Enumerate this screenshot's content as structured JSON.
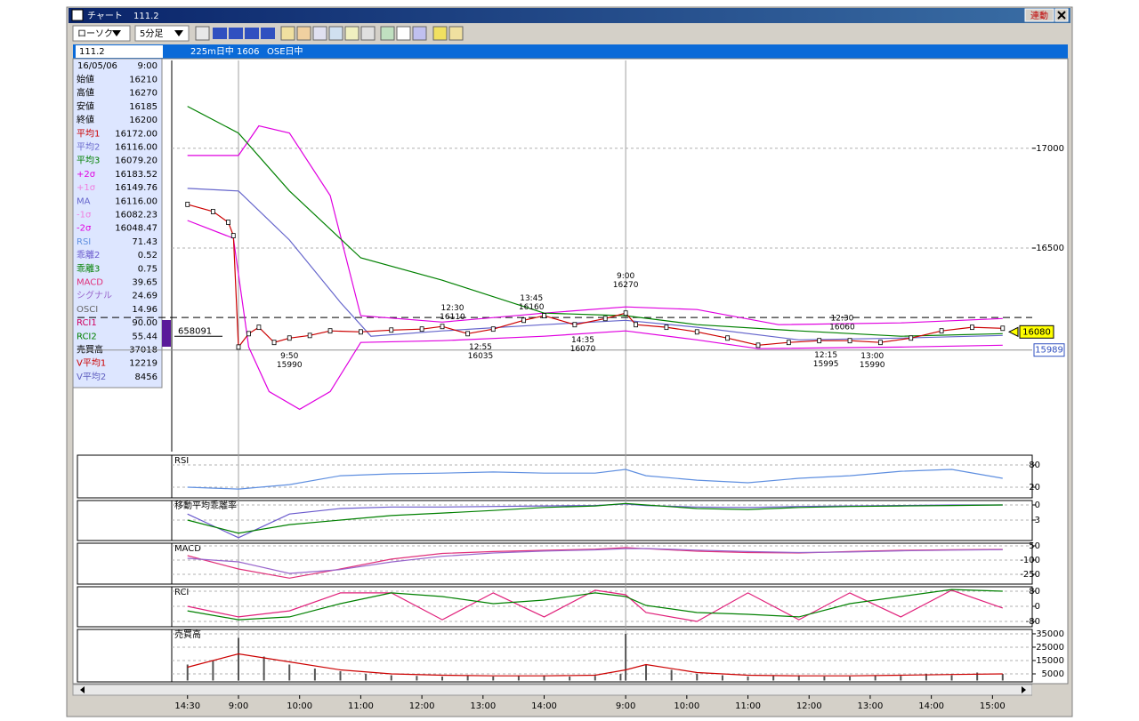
{
  "window": {
    "title": "チャート",
    "code": "111.2",
    "link_button": "連動"
  },
  "toolbar": {
    "chart_style": "ローソク",
    "interval": "5分足"
  },
  "header": {
    "input": "111.2",
    "contract": "225m日中 1606",
    "session": "OSE日中"
  },
  "info_panel": {
    "date": "16/05/06",
    "time": "9:00",
    "rows": [
      {
        "label": "始値",
        "value": "16210",
        "color": "#000000"
      },
      {
        "label": "高値",
        "value": "16270",
        "color": "#000000"
      },
      {
        "label": "安値",
        "value": "16185",
        "color": "#000000"
      },
      {
        "label": "終値",
        "value": "16200",
        "color": "#000000"
      },
      {
        "label": "平均1",
        "value": "16172.00",
        "color": "#cc0000"
      },
      {
        "label": "平均2",
        "value": "16116.00",
        "color": "#6a6acd"
      },
      {
        "label": "平均3",
        "value": "16079.20",
        "color": "#008000"
      },
      {
        "label": "+2σ",
        "value": "16183.52",
        "color": "#e000e0"
      },
      {
        "label": "+1σ",
        "value": "16149.76",
        "color": "#f080e0"
      },
      {
        "label": "MA",
        "value": "16116.00",
        "color": "#6666cc"
      },
      {
        "label": "-1σ",
        "value": "16082.23",
        "color": "#f080e0"
      },
      {
        "label": "-2σ",
        "value": "16048.47",
        "color": "#e000e0"
      },
      {
        "label": "RSI",
        "value": "71.43",
        "color": "#5f8fe0"
      },
      {
        "label": "乖離2",
        "value": "0.52",
        "color": "#6a5acd"
      },
      {
        "label": "乖離3",
        "value": "0.75",
        "color": "#008000"
      },
      {
        "label": "MACD",
        "value": "39.65",
        "color": "#e0307a"
      },
      {
        "label": "シグナル",
        "value": "24.69",
        "color": "#9966cc"
      },
      {
        "label": "OSCI",
        "value": "14.96",
        "color": "#666666"
      },
      {
        "label": "RCI1",
        "value": "90.00",
        "color": "#d00060"
      },
      {
        "label": "RCI2",
        "value": "55.44",
        "color": "#008000"
      },
      {
        "label": "売買高",
        "value": "37018",
        "color": "#000000"
      },
      {
        "label": "V平均1",
        "value": "12219",
        "color": "#cc0000"
      },
      {
        "label": "V平均2",
        "value": "8456",
        "color": "#6060c0"
      }
    ]
  },
  "chart_data": [
    {
      "type": "line",
      "xlim": [
        -3.1,
        165.8
      ],
      "ylim": [
        15480,
        17440
      ],
      "yticks": [
        16500,
        17000
      ],
      "grid": true,
      "cursor_x": [
        10,
        86
      ],
      "reference_line": 16152,
      "last_price": 16080,
      "low_price": 15989,
      "volume_label": "658091",
      "series": [
        {
          "color": "#e000e0",
          "x": [
            0,
            10,
            14,
            20,
            28,
            34,
            50,
            70,
            86,
            100,
            116,
            140,
            160
          ],
          "values": [
            16964,
            16964,
            17112,
            17076,
            16763,
            16161,
            16129,
            16174,
            16205,
            16192,
            16116,
            16125,
            16147
          ]
        },
        {
          "color": "#e000e0",
          "x": [
            0,
            9,
            12,
            16,
            22,
            28,
            34,
            50,
            70,
            86,
            100,
            112,
            140,
            160
          ],
          "values": [
            16638,
            16549,
            16004,
            15781,
            15692,
            15781,
            16027,
            16036,
            16058,
            16085,
            16040,
            15996,
            16004,
            16013
          ]
        },
        {
          "color": "#008000",
          "x": [
            0,
            10,
            20,
            34,
            50,
            70,
            86,
            100,
            120,
            140,
            160
          ],
          "values": [
            17210,
            17076,
            16786,
            16451,
            16339,
            16174,
            16161,
            16116,
            16085,
            16058,
            16071
          ]
        },
        {
          "color": "#6666cc",
          "x": [
            0,
            10,
            20,
            30,
            36,
            50,
            70,
            86,
            100,
            120,
            140,
            160
          ],
          "values": [
            16799,
            16786,
            16540,
            16228,
            16058,
            16085,
            16116,
            16138,
            16103,
            16040,
            16049,
            16062
          ]
        },
        {
          "color": "#cc0000",
          "markers": true,
          "x": [
            0,
            5,
            8,
            9,
            10,
            12,
            14,
            17,
            20,
            24,
            28,
            34,
            40,
            46,
            50,
            55,
            60,
            66,
            70,
            76,
            82,
            86,
            88,
            94,
            100,
            106,
            112,
            118,
            124,
            130,
            136,
            142,
            148,
            154,
            160
          ],
          "values": [
            16719,
            16683,
            16629,
            16562,
            16004,
            16071,
            16103,
            16027,
            16049,
            16062,
            16085,
            16080,
            16089,
            16094,
            16107,
            16071,
            16094,
            16138,
            16161,
            16116,
            16147,
            16174,
            16116,
            16103,
            16080,
            16049,
            16013,
            16027,
            16036,
            16036,
            16027,
            16049,
            16085,
            16103,
            16098
          ]
        }
      ],
      "annotations": [
        {
          "time": "12:30",
          "value": 16110,
          "x": 52,
          "position": "above"
        },
        {
          "time": "12:55",
          "value": 16035,
          "x": 57.5,
          "position": "below"
        },
        {
          "time": "13:45",
          "value": 16160,
          "x": 67.5,
          "position": "above"
        },
        {
          "time": "14:35",
          "value": 16070,
          "x": 77.6,
          "position": "below"
        },
        {
          "time": "9:00",
          "value": 16270,
          "x": 86,
          "position": "above"
        },
        {
          "time": "9:50",
          "value": 15990,
          "x": 20,
          "position": "below"
        },
        {
          "time": "12:30",
          "value": 16060,
          "x": 128.5,
          "position": "above"
        },
        {
          "time": "12:15",
          "value": 15995,
          "x": 125.3,
          "position": "below"
        },
        {
          "time": "13:00",
          "value": 15990,
          "x": 134.4,
          "position": "below"
        }
      ]
    },
    {
      "type": "line",
      "title": "RSI",
      "xlim": [
        -3.1,
        165.8
      ],
      "ylim": [
        -8.8,
        106.4
      ],
      "yticks": [
        20,
        80
      ],
      "grid": true,
      "x": [
        0,
        10,
        20,
        30,
        40,
        50,
        60,
        70,
        80,
        86,
        90,
        100,
        110,
        120,
        130,
        140,
        150,
        160
      ],
      "series": [
        {
          "color": "#5f8fe0",
          "values": [
            20,
            15,
            27,
            51,
            56,
            58,
            61,
            58,
            58,
            68,
            51,
            39,
            32,
            44,
            51,
            63,
            68,
            44
          ]
        }
      ]
    },
    {
      "type": "line",
      "title": "移動平均乖離率",
      "xlim": [
        -3.1,
        165.8
      ],
      "ylim": [
        -7.06,
        0.88
      ],
      "yticks": [
        -3,
        0
      ],
      "grid": true,
      "x": [
        0,
        10,
        20,
        30,
        40,
        50,
        60,
        70,
        80,
        86,
        90,
        100,
        110,
        120,
        130,
        140,
        150,
        160
      ],
      "series": [
        {
          "color": "#6a5acd",
          "values": [
            -1.8,
            -6.5,
            -1.8,
            -0.7,
            -0.4,
            -0.4,
            -0.3,
            -0.2,
            -0.1,
            0.2,
            -0.1,
            -0.4,
            -0.5,
            -0.3,
            -0.2,
            -0.1,
            0,
            0
          ]
        },
        {
          "color": "#008000",
          "values": [
            -3,
            -5.6,
            -3.9,
            -3,
            -2.1,
            -1.6,
            -1.1,
            -0.5,
            -0.2,
            0.3,
            0,
            -0.7,
            -0.9,
            -0.5,
            -0.3,
            -0.2,
            -0.1,
            0
          ]
        }
      ]
    },
    {
      "type": "line",
      "title": "MACD",
      "xlim": [
        -3.1,
        165.8
      ],
      "ylim": [
        -353,
        78
      ],
      "yticks": [
        -250,
        -100,
        50
      ],
      "grid": true,
      "x": [
        0,
        10,
        20,
        30,
        40,
        50,
        60,
        70,
        80,
        86,
        90,
        100,
        110,
        120,
        130,
        140,
        150,
        160
      ],
      "series": [
        {
          "color": "#e0307a",
          "values": [
            -53,
            -194,
            -290,
            -194,
            -90,
            -30,
            -10,
            3,
            15,
            31,
            20,
            -6,
            -20,
            -25,
            -10,
            3,
            10,
            12
          ]
        },
        {
          "color": "#9966cc",
          "values": [
            -81,
            -119,
            -241,
            -200,
            -120,
            -60,
            -25,
            -5,
            8,
            20,
            22,
            5,
            -10,
            -20,
            -15,
            -3,
            5,
            10
          ]
        }
      ]
    },
    {
      "type": "line",
      "title": "RCI",
      "xlim": [
        -3.1,
        165.8
      ],
      "ylim": [
        -108,
        103.5
      ],
      "yticks": [
        -80,
        0,
        80
      ],
      "grid": true,
      "x": [
        0,
        10,
        20,
        30,
        40,
        50,
        60,
        70,
        80,
        86,
        90,
        100,
        110,
        120,
        130,
        140,
        150,
        160
      ],
      "series": [
        {
          "color": "#e0207a",
          "values": [
            0,
            -56,
            -24,
            71,
            71,
            -71,
            71,
            -56,
            85,
            61,
            -33,
            -80,
            71,
            -71,
            71,
            -56,
            85,
            -9
          ]
        },
        {
          "color": "#008000",
          "values": [
            -24,
            -71,
            -56,
            14,
            71,
            52,
            14,
            33,
            71,
            52,
            5,
            -33,
            -42,
            -56,
            14,
            52,
            89,
            80
          ]
        }
      ]
    },
    {
      "type": "bar",
      "title": "売買高",
      "xlim": [
        -3.1,
        165.8
      ],
      "ylim": [
        -1000,
        38300
      ],
      "yticks": [
        5000,
        15000,
        25000,
        35000
      ],
      "grid": true,
      "xticks": [
        {
          "value": 0,
          "label": "14:30"
        },
        {
          "value": 10,
          "label": "9:00"
        },
        {
          "value": 22,
          "label": "10:00"
        },
        {
          "value": 34,
          "label": "11:00"
        },
        {
          "value": 46,
          "label": "12:00"
        },
        {
          "value": 58,
          "label": "13:00"
        },
        {
          "value": 70,
          "label": "14:00"
        },
        {
          "value": 86,
          "label": "9:00"
        },
        {
          "value": 98,
          "label": "10:00"
        },
        {
          "value": 110,
          "label": "11:00"
        },
        {
          "value": 122,
          "label": "12:00"
        },
        {
          "value": 134,
          "label": "13:00"
        },
        {
          "value": 146,
          "label": "14:00"
        },
        {
          "value": 158,
          "label": "15:00"
        }
      ],
      "series": [
        {
          "type": "bar",
          "color": "#555555",
          "x": [
            0,
            5,
            10,
            15,
            20,
            25,
            30,
            35,
            40,
            45,
            50,
            55,
            60,
            65,
            70,
            75,
            80,
            85,
            86,
            90,
            95,
            100,
            105,
            110,
            115,
            120,
            125,
            130,
            135,
            140,
            145,
            150,
            155,
            160
          ],
          "values": [
            12000,
            15000,
            32000,
            18000,
            12000,
            9000,
            7000,
            5000,
            4000,
            3500,
            3000,
            4000,
            3000,
            3500,
            4000,
            3000,
            3500,
            5000,
            35000,
            12000,
            8000,
            5000,
            4000,
            3000,
            3500,
            4000,
            3000,
            3000,
            4000,
            3500,
            5000,
            4000,
            6000,
            5000
          ]
        },
        {
          "type": "line",
          "color": "#cc0000",
          "x": [
            0,
            10,
            20,
            30,
            40,
            50,
            60,
            70,
            80,
            86,
            90,
            100,
            110,
            120,
            130,
            140,
            150,
            160
          ],
          "values": [
            10000,
            20000,
            14000,
            8000,
            5000,
            4000,
            3500,
            3500,
            4000,
            8000,
            12000,
            6000,
            4000,
            3500,
            3500,
            4000,
            4500,
            5000
          ]
        }
      ]
    }
  ]
}
